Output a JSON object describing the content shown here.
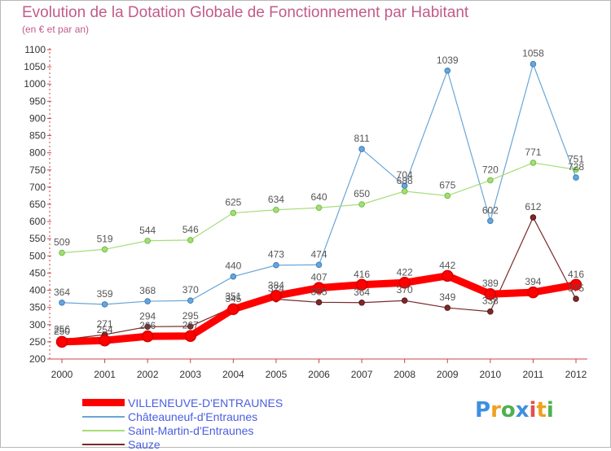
{
  "title": "Evolution de la Dotation Globale de Fonctionnement par Habitant",
  "subtitle": "(en € et par an)",
  "logo": {
    "text": "Proxiti",
    "letters": [
      {
        "ch": "P",
        "color": "#3f8fe0"
      },
      {
        "ch": "r",
        "color": "#f0a020"
      },
      {
        "ch": "o",
        "color": "#4fb04f"
      },
      {
        "ch": "x",
        "color": "#3f8fe0"
      },
      {
        "ch": "i",
        "color": "#e05050"
      },
      {
        "ch": "t",
        "color": "#f0a020"
      },
      {
        "ch": "i",
        "color": "#4fb04f"
      }
    ]
  },
  "chart_data": {
    "type": "line",
    "title": "Evolution de la Dotation Globale de Fonctionnement par Habitant",
    "subtitle": "(en € et par an)",
    "x": [
      "2000",
      "2001",
      "2002",
      "2003",
      "2004",
      "2005",
      "2006",
      "2007",
      "2008",
      "2009",
      "2010",
      "2011",
      "2012"
    ],
    "ylim": [
      200,
      1100
    ],
    "yticks": [
      200,
      250,
      300,
      350,
      400,
      450,
      500,
      550,
      600,
      650,
      700,
      750,
      800,
      850,
      900,
      950,
      1000,
      1050,
      1100
    ],
    "grid": false,
    "legend": "bottom-left",
    "series": [
      {
        "name": "VILLENEUVE-D'ENTRAUNES",
        "color": "#ff0000",
        "values": [
          250,
          254,
          266,
          267,
          345,
          384,
          407,
          416,
          422,
          442,
          389,
          394,
          416
        ],
        "labels": [
          "250",
          "254",
          "266",
          "267",
          "345",
          "384",
          "407",
          "416",
          "422",
          "442",
          "389",
          "394",
          "416"
        ]
      },
      {
        "name": "Châteauneuf-d'Entraunes",
        "color": "#6aa6d6",
        "values": [
          364,
          359,
          368,
          370,
          440,
          473,
          474,
          811,
          704,
          1039,
          602,
          1058,
          728
        ],
        "labels": [
          "364",
          "359",
          "368",
          "370",
          "440",
          "473",
          "474",
          "811",
          "704",
          "1039",
          "602",
          "1058",
          "728"
        ]
      },
      {
        "name": "Saint-Martin-d'Entraunes",
        "color": "#a8dc78",
        "values": [
          509,
          519,
          544,
          546,
          625,
          634,
          640,
          650,
          688,
          675,
          720,
          771,
          751
        ],
        "labels": [
          "509",
          "519",
          "544",
          "546",
          "625",
          "634",
          "640",
          "650",
          "688",
          "675",
          "720",
          "771",
          "751"
        ]
      },
      {
        "name": "Sauze",
        "color": "#7a2a2a",
        "values": [
          256,
          271,
          294,
          295,
          351,
          374,
          365,
          364,
          370,
          349,
          338,
          612,
          375
        ],
        "labels": [
          "256",
          "271",
          "294",
          "295",
          "351",
          "374",
          "365",
          "364",
          "370",
          "349",
          "338",
          "612",
          "375"
        ]
      }
    ]
  }
}
